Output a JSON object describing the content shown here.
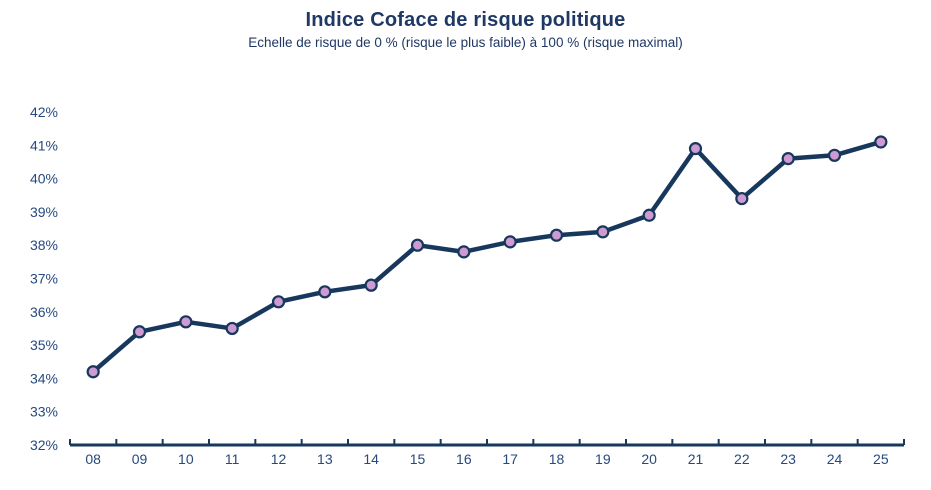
{
  "chart_data": {
    "type": "line",
    "title": "Indice Coface de risque politique",
    "subtitle": "Echelle de risque de 0 % (risque le plus faible) à 100 % (risque maximal)",
    "categories": [
      "08",
      "09",
      "10",
      "11",
      "12",
      "13",
      "14",
      "15",
      "16",
      "17",
      "18",
      "19",
      "20",
      "21",
      "22",
      "23",
      "24",
      "25"
    ],
    "series": [
      {
        "name": "Indice Coface de risque politique",
        "values": [
          34.2,
          35.4,
          35.7,
          35.5,
          36.3,
          36.6,
          36.8,
          38.0,
          37.8,
          38.1,
          38.3,
          38.4,
          38.9,
          40.9,
          39.4,
          40.6,
          40.7,
          41.1
        ]
      }
    ],
    "unit": "%",
    "xlabel": "",
    "ylabel": "",
    "ylim": [
      32,
      42
    ],
    "ytick_step": 1,
    "ytick_labels": [
      "32%",
      "33%",
      "34%",
      "35%",
      "36%",
      "37%",
      "38%",
      "39%",
      "40%",
      "41%",
      "42%"
    ],
    "grid": false,
    "legend_position": "none",
    "colors": {
      "line": "#17375d",
      "marker_fill": "#cd9bd1",
      "marker_stroke": "#17375d",
      "axis_text": "#26497f",
      "title_text": "#1f3864",
      "background": "#ffffff"
    }
  }
}
